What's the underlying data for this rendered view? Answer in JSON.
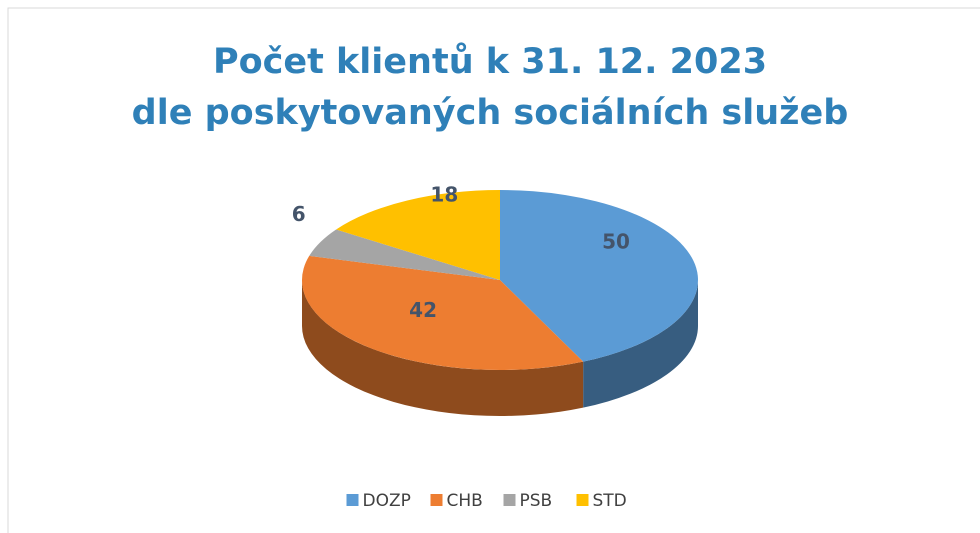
{
  "chart_data": {
    "type": "pie",
    "title": [
      "Počet klientů k 31. 12. 2023",
      "dle poskytovaných sociálních služeb"
    ],
    "categories": [
      "DOZP",
      "CHB",
      "PSB",
      "STD"
    ],
    "values": [
      50,
      42,
      6,
      18
    ],
    "colors": [
      "#5b9bd5",
      "#ed7d31",
      "#a5a5a5",
      "#ffc000"
    ],
    "legend": "bottom"
  }
}
